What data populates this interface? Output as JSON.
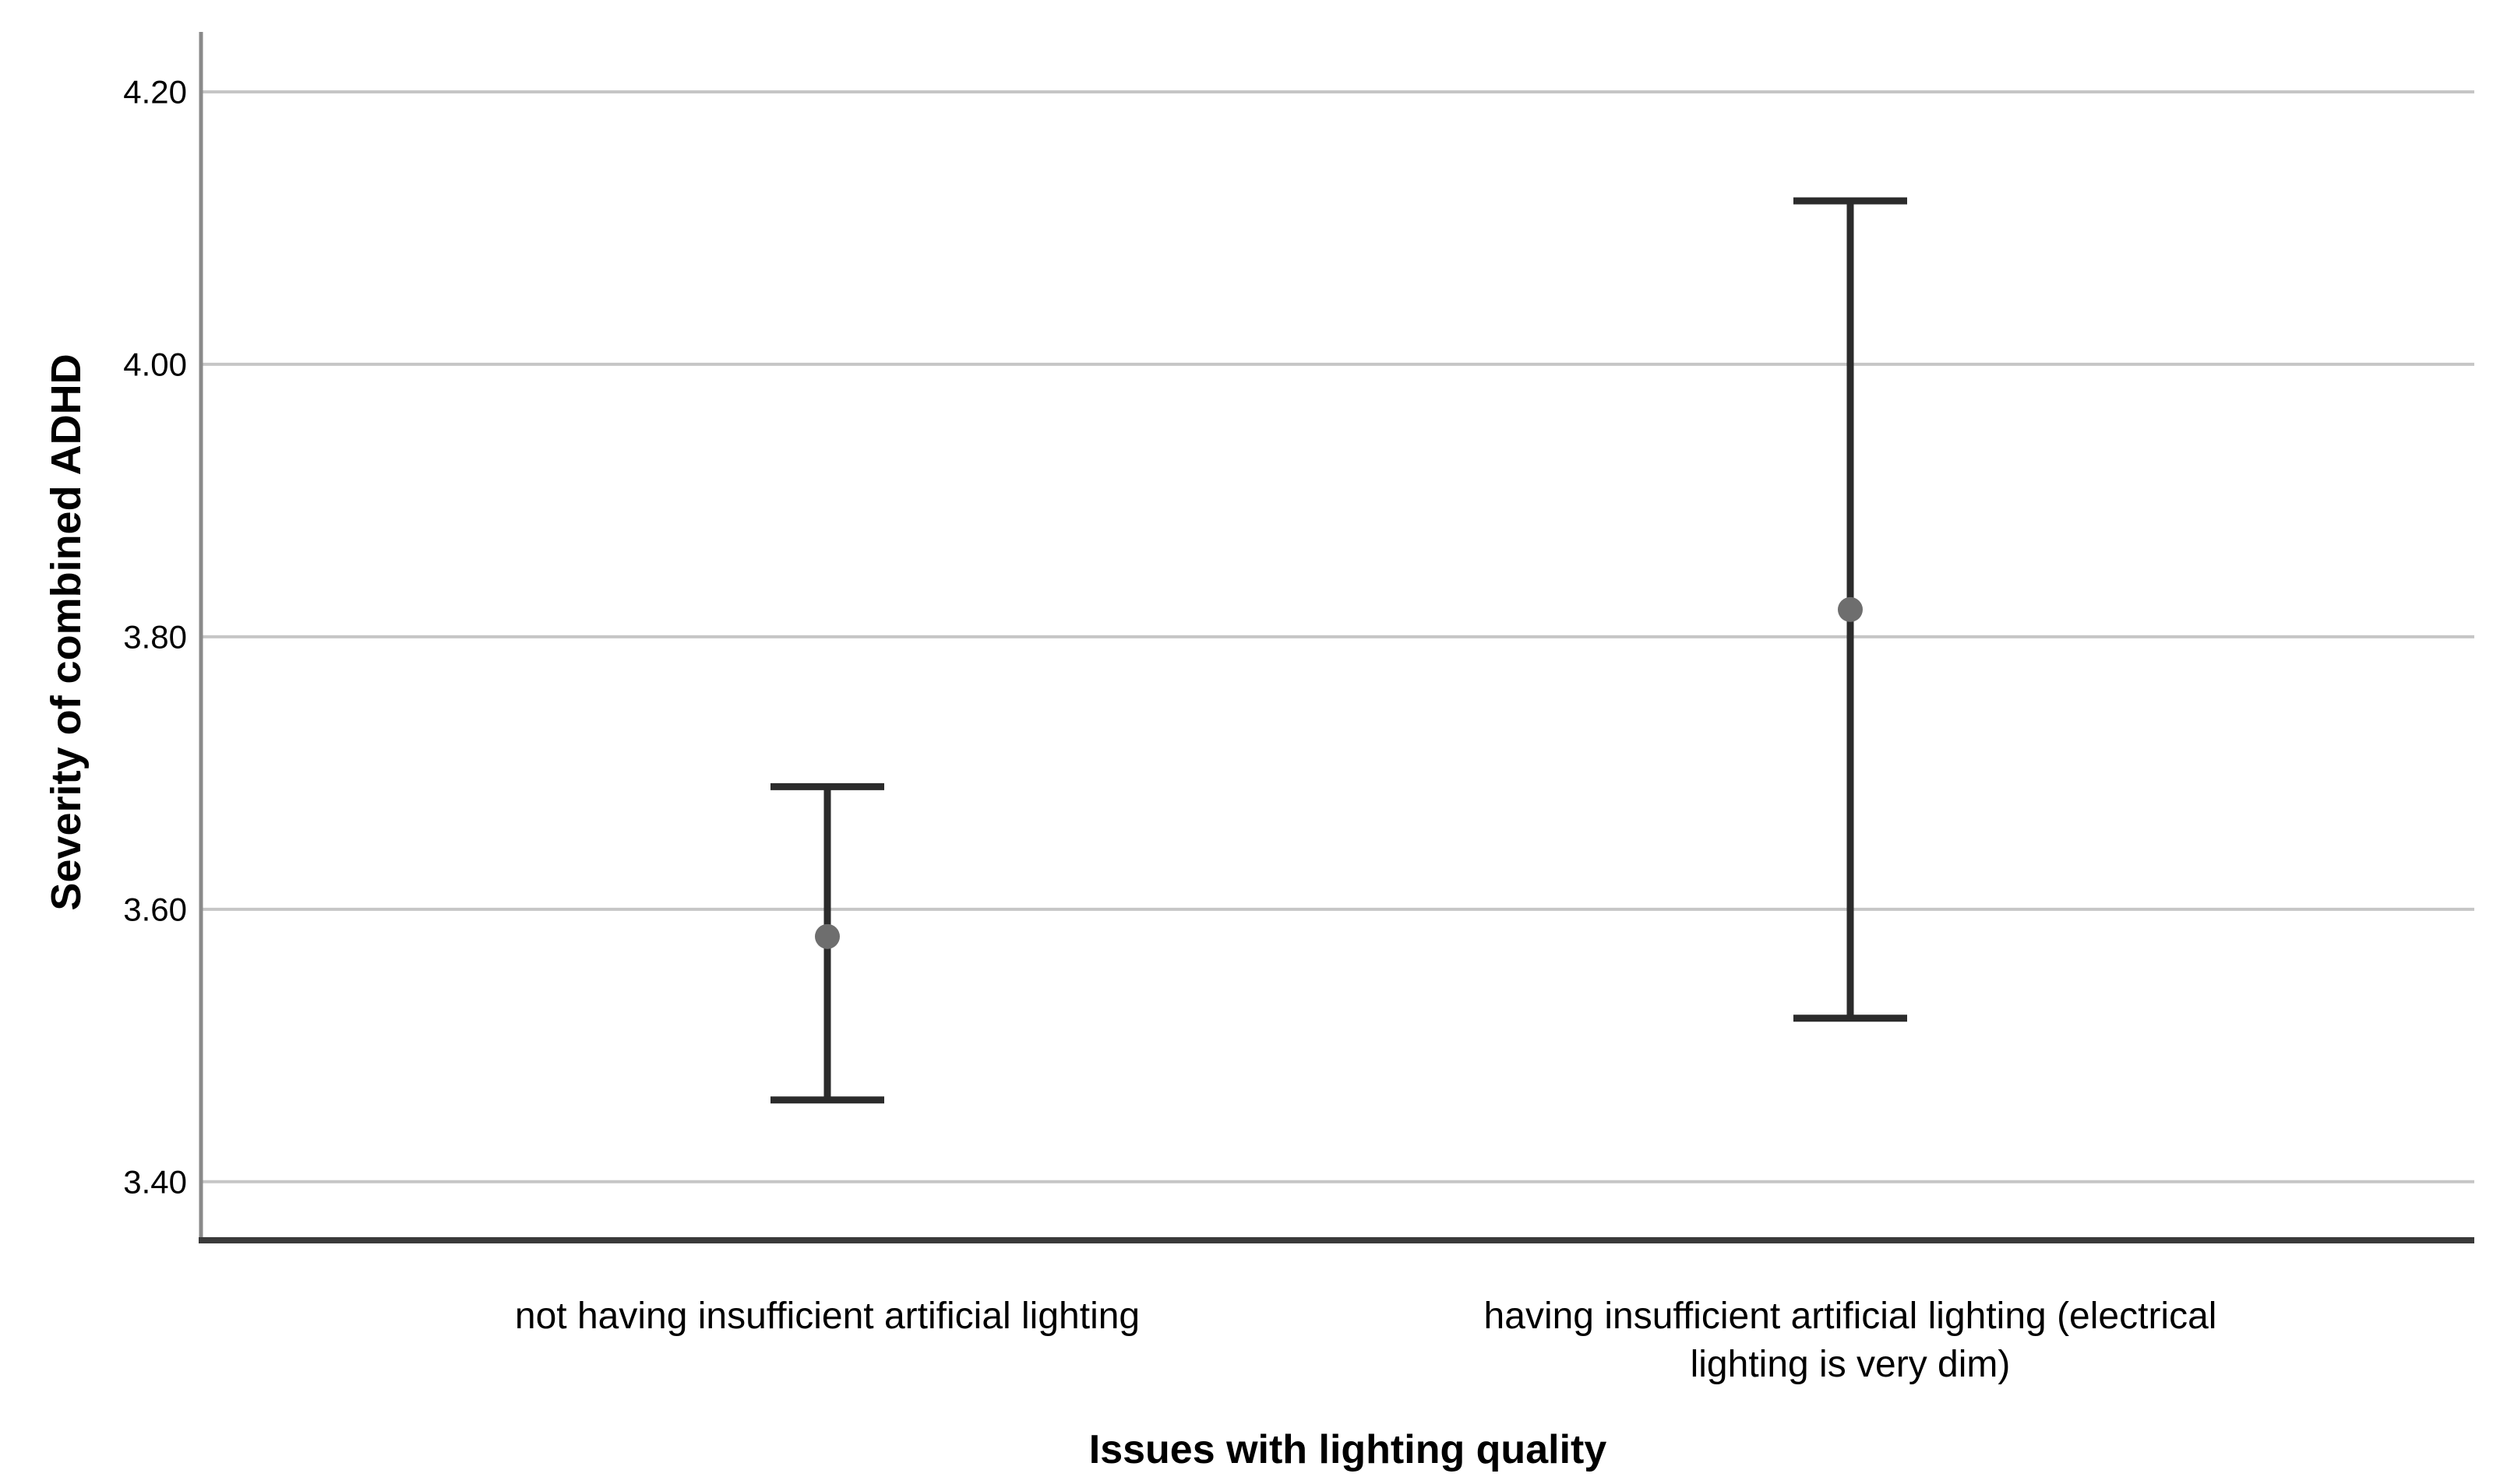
{
  "chart_data": {
    "type": "errorbar",
    "title": "",
    "xlabel": "Issues with lighting quality",
    "ylabel": "Severity of combined ADHD",
    "categories": [
      "not having insufficient artificial lighting",
      "having insufficient artificial lighting (electrical lighting is very dim)"
    ],
    "category_display_lines": [
      [
        "not having insufficient artificial lighting"
      ],
      [
        "having insufficient artificial lighting (electrical",
        "lighting is very dim)"
      ]
    ],
    "series": [
      {
        "name": "mean with error bars",
        "points": [
          {
            "category": "not having insufficient artificial lighting",
            "mean": 3.58,
            "upper": 3.69,
            "lower": 3.46
          },
          {
            "category": "having insufficient artificial lighting (electrical lighting is very dim)",
            "mean": 3.82,
            "upper": 4.12,
            "lower": 3.52
          }
        ]
      }
    ],
    "yticks": [
      {
        "label": "4.20",
        "value": 4.2
      },
      {
        "label": "4.00",
        "value": 4.0
      },
      {
        "label": "3.80",
        "value": 3.8
      },
      {
        "label": "3.60",
        "value": 3.6
      },
      {
        "label": "3.40",
        "value": 3.4
      }
    ],
    "ylim": [
      3.357,
      4.244
    ],
    "grid": "horizontal",
    "legend": "none",
    "colors": {
      "gridline": "#c6c6c6",
      "y_axis_line": "#8a8a8a",
      "x_axis_line": "#3a3a3a",
      "error_bar": "#2b2b2b",
      "marker": "#6e6e6e",
      "text": "#000000"
    }
  }
}
